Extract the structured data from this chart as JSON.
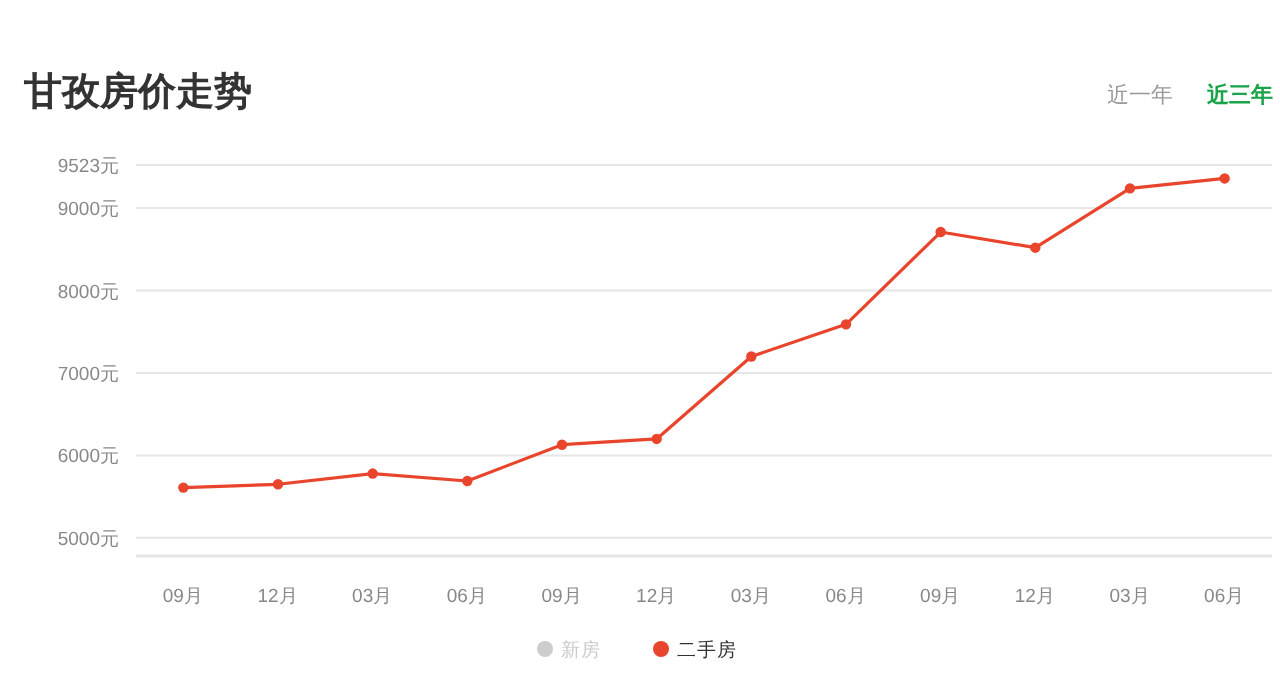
{
  "chart_data": {
    "type": "line",
    "title": "甘孜房价走势",
    "annotations": [
      "近一年",
      "近三年"
    ],
    "categories": [
      "09月",
      "12月",
      "03月",
      "06月",
      "09月",
      "12月",
      "03月",
      "06月",
      "09月",
      "12月",
      "03月",
      "06月"
    ],
    "series": [
      {
        "name": "新房",
        "color": "#cccccc",
        "values": [
          null,
          null,
          null,
          null,
          null,
          null,
          null,
          null,
          null,
          null,
          null,
          null
        ]
      },
      {
        "name": "二手房",
        "color": "#e8452c",
        "values": [
          5610,
          5650,
          5780,
          5690,
          6130,
          6200,
          7200,
          7590,
          8710,
          8520,
          9240,
          9360
        ]
      }
    ],
    "ylim": [
      4780,
      9523
    ],
    "yticks": [
      {
        "value": 5000,
        "label": "5000元"
      },
      {
        "value": 6000,
        "label": "6000元"
      },
      {
        "value": 7000,
        "label": "7000元"
      },
      {
        "value": 8000,
        "label": "8000元"
      },
      {
        "value": 9000,
        "label": "9000元"
      },
      {
        "value": 9523,
        "label": "9523元"
      }
    ],
    "grid": "y",
    "legend": "bottom",
    "marker": "circle",
    "line_style": "solid"
  }
}
